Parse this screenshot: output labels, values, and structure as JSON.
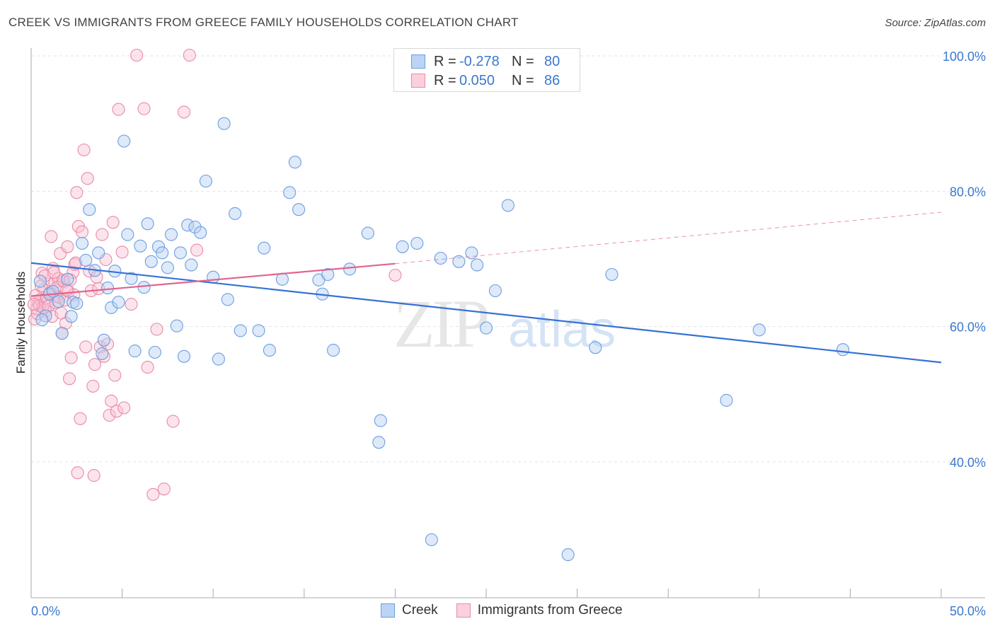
{
  "header": {
    "title": "CREEK VS IMMIGRANTS FROM GREECE FAMILY HOUSEHOLDS CORRELATION CHART",
    "source": "Source: ZipAtlas.com"
  },
  "legend": {
    "series": [
      {
        "name": "Creek",
        "r_label": "R =",
        "r_value": "-0.278",
        "n_label": "N =",
        "n_value": "80",
        "fill": "#a9c8f0",
        "stroke": "#6a9fe0"
      },
      {
        "name": "Immigrants from Greece",
        "r_label": "R =",
        "r_value": "0.050",
        "n_label": "N =",
        "n_value": "86",
        "fill": "#f7bfd0",
        "stroke": "#e98aa8"
      }
    ]
  },
  "watermark": {
    "zip": "ZIP",
    "atlas": "atlas"
  },
  "colors": {
    "blue_line": "#3572d4",
    "pink_line": "#e0648e",
    "axis_text": "#3b78d0",
    "grid": "#e3e3e3"
  },
  "chart_data": {
    "type": "scatter",
    "title": "CREEK VS IMMIGRANTS FROM GREECE FAMILY HOUSEHOLDS CORRELATION CHART",
    "xlabel": "",
    "ylabel": "Family Households",
    "xlim": [
      0,
      50
    ],
    "ylim": [
      20,
      101
    ],
    "x_ticks": [
      {
        "value": 0,
        "label": "0.0%"
      },
      {
        "value": 50,
        "label": "50.0%"
      }
    ],
    "y_ticks": [
      {
        "value": 40,
        "label": "40.0%"
      },
      {
        "value": 60,
        "label": "60.0%"
      },
      {
        "value": 80,
        "label": "80.0%"
      },
      {
        "value": 100,
        "label": "100.0%"
      }
    ],
    "x_minor_ticks": [
      0,
      5,
      10,
      15,
      20,
      25,
      30,
      35,
      40,
      45,
      50
    ],
    "series": [
      {
        "name": "Creek",
        "color": "#6a9fe0",
        "trend": {
          "x": [
            0,
            50
          ],
          "y": [
            69.4,
            54.7
          ],
          "dashed_after": null
        },
        "points": [
          [
            0.5,
            66.7
          ],
          [
            0.8,
            61.6
          ],
          [
            1.0,
            64.8
          ],
          [
            1.2,
            65.2
          ],
          [
            1.5,
            63.7
          ],
          [
            2.0,
            67.0
          ],
          [
            2.2,
            61.5
          ],
          [
            2.3,
            63.6
          ],
          [
            2.5,
            63.4
          ],
          [
            2.8,
            72.3
          ],
          [
            3.0,
            69.8
          ],
          [
            3.2,
            77.3
          ],
          [
            3.5,
            68.3
          ],
          [
            3.7,
            70.9
          ],
          [
            4.0,
            58.0
          ],
          [
            4.2,
            65.7
          ],
          [
            4.4,
            62.8
          ],
          [
            4.6,
            68.2
          ],
          [
            4.8,
            63.6
          ],
          [
            5.1,
            87.4
          ],
          [
            5.3,
            73.6
          ],
          [
            5.5,
            67.1
          ],
          [
            5.7,
            56.4
          ],
          [
            6.0,
            71.9
          ],
          [
            6.2,
            65.8
          ],
          [
            6.4,
            75.2
          ],
          [
            6.6,
            69.6
          ],
          [
            6.8,
            56.2
          ],
          [
            7.0,
            71.8
          ],
          [
            7.2,
            70.9
          ],
          [
            7.5,
            68.7
          ],
          [
            7.7,
            73.6
          ],
          [
            8.0,
            60.1
          ],
          [
            8.2,
            70.9
          ],
          [
            8.4,
            55.6
          ],
          [
            8.6,
            75.0
          ],
          [
            8.8,
            69.1
          ],
          [
            9.0,
            74.7
          ],
          [
            9.3,
            73.9
          ],
          [
            9.6,
            81.5
          ],
          [
            10.0,
            67.3
          ],
          [
            10.3,
            55.2
          ],
          [
            10.6,
            90.0
          ],
          [
            10.8,
            64.0
          ],
          [
            11.2,
            76.7
          ],
          [
            11.5,
            59.4
          ],
          [
            12.5,
            59.4
          ],
          [
            12.8,
            71.6
          ],
          [
            13.1,
            56.5
          ],
          [
            13.8,
            67.0
          ],
          [
            14.2,
            79.8
          ],
          [
            14.5,
            84.3
          ],
          [
            14.7,
            77.3
          ],
          [
            15.8,
            66.9
          ],
          [
            16.0,
            64.8
          ],
          [
            16.3,
            67.7
          ],
          [
            16.6,
            56.5
          ],
          [
            17.5,
            68.5
          ],
          [
            18.5,
            73.8
          ],
          [
            19.1,
            42.9
          ],
          [
            19.2,
            46.1
          ],
          [
            20.4,
            71.8
          ],
          [
            21.2,
            72.3
          ],
          [
            22.0,
            28.5
          ],
          [
            22.5,
            70.1
          ],
          [
            23.5,
            69.6
          ],
          [
            24.2,
            70.9
          ],
          [
            24.5,
            69.1
          ],
          [
            25.0,
            59.8
          ],
          [
            25.5,
            65.3
          ],
          [
            26.2,
            77.9
          ],
          [
            31.0,
            56.9
          ],
          [
            31.9,
            67.7
          ],
          [
            38.2,
            49.1
          ],
          [
            40.0,
            59.5
          ],
          [
            44.6,
            56.6
          ],
          [
            29.5,
            26.3
          ],
          [
            1.7,
            59.0
          ],
          [
            3.9,
            56.0
          ],
          [
            0.6,
            61.0
          ]
        ]
      },
      {
        "name": "Immigrants from Greece",
        "color": "#e98aa8",
        "trend": {
          "x": [
            0,
            20
          ],
          "y": [
            64.5,
            69.3
          ],
          "dashed_to": {
            "x": 50,
            "y": 76.9
          }
        },
        "points": [
          [
            0.2,
            61.1
          ],
          [
            0.3,
            62.6
          ],
          [
            0.4,
            63.4
          ],
          [
            0.5,
            64.0
          ],
          [
            0.6,
            67.9
          ],
          [
            0.7,
            65.5
          ],
          [
            0.8,
            62.3
          ],
          [
            0.9,
            63.7
          ],
          [
            1.0,
            66.3
          ],
          [
            1.1,
            73.3
          ],
          [
            1.2,
            68.6
          ],
          [
            1.3,
            66.5
          ],
          [
            1.4,
            64.5
          ],
          [
            1.5,
            67.1
          ],
          [
            1.6,
            70.8
          ],
          [
            1.7,
            59.0
          ],
          [
            1.8,
            66.6
          ],
          [
            1.9,
            60.5
          ],
          [
            2.0,
            71.8
          ],
          [
            2.1,
            52.3
          ],
          [
            2.2,
            55.4
          ],
          [
            2.3,
            68.0
          ],
          [
            2.4,
            69.2
          ],
          [
            2.5,
            79.8
          ],
          [
            2.6,
            74.8
          ],
          [
            2.7,
            46.4
          ],
          [
            2.8,
            74.0
          ],
          [
            2.9,
            86.1
          ],
          [
            3.0,
            57.0
          ],
          [
            3.1,
            81.9
          ],
          [
            3.2,
            68.2
          ],
          [
            3.3,
            65.3
          ],
          [
            3.4,
            51.2
          ],
          [
            3.5,
            54.4
          ],
          [
            3.6,
            67.3
          ],
          [
            3.7,
            65.6
          ],
          [
            3.8,
            57.0
          ],
          [
            3.9,
            73.6
          ],
          [
            4.0,
            55.6
          ],
          [
            4.1,
            69.9
          ],
          [
            4.2,
            57.4
          ],
          [
            4.3,
            46.9
          ],
          [
            4.4,
            49.0
          ],
          [
            4.5,
            75.4
          ],
          [
            4.6,
            52.8
          ],
          [
            4.7,
            47.5
          ],
          [
            4.8,
            92.1
          ],
          [
            5.0,
            71.0
          ],
          [
            5.1,
            48.0
          ],
          [
            5.5,
            63.3
          ],
          [
            5.8,
            100.1
          ],
          [
            6.2,
            92.2
          ],
          [
            6.4,
            54.0
          ],
          [
            6.7,
            35.2
          ],
          [
            6.9,
            59.6
          ],
          [
            7.3,
            36.0
          ],
          [
            7.8,
            46.0
          ],
          [
            8.4,
            91.7
          ],
          [
            8.7,
            100.1
          ],
          [
            9.1,
            71.3
          ],
          [
            0.25,
            64.6
          ],
          [
            0.35,
            61.9
          ],
          [
            0.45,
            63.1
          ],
          [
            0.55,
            66.0
          ],
          [
            0.65,
            62.8
          ],
          [
            0.75,
            67.5
          ],
          [
            0.85,
            64.2
          ],
          [
            0.95,
            63.0
          ],
          [
            1.05,
            65.0
          ],
          [
            1.15,
            61.5
          ],
          [
            1.25,
            68.0
          ],
          [
            1.35,
            63.5
          ],
          [
            1.45,
            65.8
          ],
          [
            1.55,
            64.3
          ],
          [
            1.65,
            62.0
          ],
          [
            1.75,
            66.8
          ],
          [
            1.85,
            63.9
          ],
          [
            2.05,
            65.2
          ],
          [
            2.15,
            66.9
          ],
          [
            2.35,
            64.7
          ],
          [
            2.45,
            69.4
          ],
          [
            2.55,
            38.4
          ],
          [
            3.45,
            38.0
          ],
          [
            20.0,
            67.6
          ],
          [
            0.15,
            63.3
          ],
          [
            1.95,
            65.4
          ]
        ]
      }
    ]
  }
}
